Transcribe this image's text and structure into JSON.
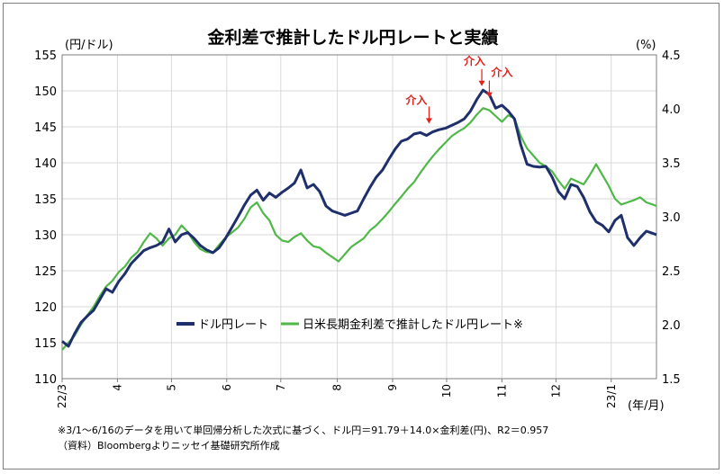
{
  "chart_data": {
    "type": "line",
    "title": "金利差で推計したドル円レートと実績",
    "y_left_unit": "(円/ドル)",
    "y_right_unit": "(%)",
    "x_unit": "(年/月)",
    "y_left_range": [
      110,
      155
    ],
    "y_right_range": [
      1.5,
      4.5
    ],
    "y_left_ticks": [
      "110",
      "115",
      "120",
      "125",
      "130",
      "135",
      "140",
      "145",
      "150",
      "155"
    ],
    "y_right_ticks": [
      "1.5",
      "2.0",
      "2.5",
      "3.0",
      "3.5",
      "4.0",
      "4.5"
    ],
    "x_ticks": [
      {
        "label": "22/3",
        "week": 0
      },
      {
        "label": "4",
        "week": 4.4
      },
      {
        "label": "5",
        "week": 8.7
      },
      {
        "label": "6",
        "week": 13.1
      },
      {
        "label": "7",
        "week": 17.4
      },
      {
        "label": "8",
        "week": 21.9
      },
      {
        "label": "9",
        "week": 26.3
      },
      {
        "label": "10",
        "week": 30.6
      },
      {
        "label": "11",
        "week": 35
      },
      {
        "label": "12",
        "week": 39.3
      },
      {
        "label": "23/1",
        "week": 43.7
      }
    ],
    "x_domain": [
      0,
      47.3
    ],
    "grid": true,
    "legend_position": "bottom-center",
    "series": [
      {
        "name": "ドル円レート",
        "axis": "left",
        "color": "#1f2f6b",
        "points": [
          [
            0,
            115.2
          ],
          [
            0.5,
            114.5
          ],
          [
            1,
            116.3
          ],
          [
            1.5,
            117.8
          ],
          [
            2,
            118.7
          ],
          [
            2.5,
            119.5
          ],
          [
            3,
            121.0
          ],
          [
            3.5,
            122.5
          ],
          [
            4,
            122.0
          ],
          [
            4.5,
            123.5
          ],
          [
            5,
            124.6
          ],
          [
            5.5,
            126.0
          ],
          [
            6,
            126.9
          ],
          [
            6.5,
            127.8
          ],
          [
            7,
            128.2
          ],
          [
            7.5,
            128.5
          ],
          [
            8,
            129.0
          ],
          [
            8.5,
            130.8
          ],
          [
            9,
            129.0
          ],
          [
            9.5,
            130.0
          ],
          [
            10,
            130.3
          ],
          [
            10.5,
            129.5
          ],
          [
            11,
            128.5
          ],
          [
            11.5,
            127.9
          ],
          [
            12,
            127.5
          ],
          [
            12.5,
            128.2
          ],
          [
            13,
            129.5
          ],
          [
            13.5,
            131.0
          ],
          [
            14,
            132.5
          ],
          [
            14.5,
            134.1
          ],
          [
            15,
            135.5
          ],
          [
            15.5,
            136.2
          ],
          [
            16,
            134.8
          ],
          [
            16.5,
            135.8
          ],
          [
            17,
            135.2
          ],
          [
            17.5,
            135.9
          ],
          [
            18,
            136.5
          ],
          [
            18.5,
            137.2
          ],
          [
            19,
            139.0
          ],
          [
            19.5,
            136.5
          ],
          [
            20,
            137.0
          ],
          [
            20.5,
            136.0
          ],
          [
            21,
            134.0
          ],
          [
            21.5,
            133.3
          ],
          [
            22,
            133.0
          ],
          [
            22.5,
            132.7
          ],
          [
            23,
            133.0
          ],
          [
            23.5,
            133.3
          ],
          [
            24,
            135.0
          ],
          [
            24.5,
            136.6
          ],
          [
            25,
            138.0
          ],
          [
            25.5,
            139.0
          ],
          [
            26,
            140.5
          ],
          [
            26.5,
            141.9
          ],
          [
            27,
            143.0
          ],
          [
            27.5,
            143.3
          ],
          [
            28,
            144.0
          ],
          [
            28.5,
            144.2
          ],
          [
            29,
            143.8
          ],
          [
            29.5,
            144.3
          ],
          [
            30,
            144.6
          ],
          [
            30.5,
            144.8
          ],
          [
            31,
            145.2
          ],
          [
            31.5,
            145.6
          ],
          [
            32,
            146.1
          ],
          [
            32.5,
            147.2
          ],
          [
            33,
            148.8
          ],
          [
            33.5,
            150.1
          ],
          [
            34,
            149.5
          ],
          [
            34.5,
            147.6
          ],
          [
            35,
            148.0
          ],
          [
            35.5,
            147.2
          ],
          [
            36,
            146.1
          ],
          [
            36.5,
            142.5
          ],
          [
            37,
            139.8
          ],
          [
            37.5,
            139.5
          ],
          [
            38,
            139.4
          ],
          [
            38.5,
            139.5
          ],
          [
            39,
            138.0
          ],
          [
            39.5,
            136.0
          ],
          [
            40,
            135.0
          ],
          [
            40.5,
            137.0
          ],
          [
            41,
            136.7
          ],
          [
            41.5,
            135.2
          ],
          [
            42,
            133.2
          ],
          [
            42.5,
            131.8
          ],
          [
            43,
            131.3
          ],
          [
            43.5,
            130.4
          ],
          [
            44,
            132.0
          ],
          [
            44.5,
            132.7
          ],
          [
            45,
            129.6
          ],
          [
            45.5,
            128.5
          ],
          [
            46,
            129.6
          ],
          [
            46.5,
            130.5
          ],
          [
            47,
            130.2
          ],
          [
            47.3,
            130.0
          ]
        ]
      },
      {
        "name": "日米長期金利差で推計したドル円レート※",
        "axis": "left",
        "color": "#4fb848",
        "points": [
          [
            0,
            114.0
          ],
          [
            0.5,
            115.0
          ],
          [
            1,
            116.0
          ],
          [
            1.5,
            117.5
          ],
          [
            2,
            118.8
          ],
          [
            2.5,
            120.0
          ],
          [
            3,
            121.5
          ],
          [
            3.5,
            122.8
          ],
          [
            4,
            123.6
          ],
          [
            4.5,
            124.8
          ],
          [
            5,
            125.6
          ],
          [
            5.5,
            126.8
          ],
          [
            6,
            127.6
          ],
          [
            6.5,
            129.0
          ],
          [
            7,
            130.2
          ],
          [
            7.5,
            129.5
          ],
          [
            8,
            128.5
          ],
          [
            8.5,
            129.5
          ],
          [
            9,
            130.0
          ],
          [
            9.5,
            131.3
          ],
          [
            10,
            130.4
          ],
          [
            10.5,
            129.0
          ],
          [
            11,
            128.0
          ],
          [
            11.5,
            127.6
          ],
          [
            12,
            127.5
          ],
          [
            12.5,
            128.6
          ],
          [
            13,
            129.6
          ],
          [
            13.5,
            130.3
          ],
          [
            14,
            131.0
          ],
          [
            14.5,
            132.2
          ],
          [
            15,
            133.8
          ],
          [
            15.5,
            134.5
          ],
          [
            16,
            133.0
          ],
          [
            16.5,
            132.0
          ],
          [
            17,
            130.0
          ],
          [
            17.5,
            129.2
          ],
          [
            18,
            129.0
          ],
          [
            18.5,
            129.7
          ],
          [
            19,
            130.2
          ],
          [
            19.5,
            129.2
          ],
          [
            20,
            128.4
          ],
          [
            20.5,
            128.2
          ],
          [
            21,
            127.5
          ],
          [
            21.5,
            126.9
          ],
          [
            22,
            126.3
          ],
          [
            22.5,
            127.3
          ],
          [
            23,
            128.3
          ],
          [
            23.5,
            128.9
          ],
          [
            24,
            129.5
          ],
          [
            24.5,
            130.6
          ],
          [
            25,
            131.3
          ],
          [
            25.5,
            132.2
          ],
          [
            26,
            133.2
          ],
          [
            26.5,
            134.3
          ],
          [
            27,
            135.3
          ],
          [
            27.5,
            136.4
          ],
          [
            28,
            137.3
          ],
          [
            28.5,
            138.6
          ],
          [
            29,
            139.8
          ],
          [
            29.5,
            140.9
          ],
          [
            30,
            141.9
          ],
          [
            30.5,
            142.8
          ],
          [
            31,
            143.7
          ],
          [
            31.5,
            144.3
          ],
          [
            32,
            144.8
          ],
          [
            32.5,
            145.6
          ],
          [
            33,
            146.7
          ],
          [
            33.5,
            147.6
          ],
          [
            34,
            147.3
          ],
          [
            34.5,
            146.5
          ],
          [
            35,
            145.7
          ],
          [
            35.5,
            146.6
          ],
          [
            36,
            146.2
          ],
          [
            36.5,
            143.7
          ],
          [
            37,
            142.0
          ],
          [
            37.5,
            141.0
          ],
          [
            38,
            140.0
          ],
          [
            38.5,
            139.5
          ],
          [
            39,
            138.8
          ],
          [
            39.5,
            137.5
          ],
          [
            40,
            136.4
          ],
          [
            40.5,
            137.8
          ],
          [
            41,
            137.4
          ],
          [
            41.5,
            137.0
          ],
          [
            42,
            138.3
          ],
          [
            42.5,
            139.8
          ],
          [
            43,
            138.3
          ],
          [
            43.5,
            136.8
          ],
          [
            44,
            135.0
          ],
          [
            44.5,
            134.2
          ],
          [
            45,
            134.5
          ],
          [
            45.5,
            134.8
          ],
          [
            46,
            135.2
          ],
          [
            46.5,
            134.5
          ],
          [
            47,
            134.2
          ],
          [
            47.3,
            134.0
          ]
        ]
      }
    ],
    "annotations": [
      {
        "label": "介入",
        "week": 29.2,
        "value": 145.2
      },
      {
        "label": "介入",
        "week": 33.4,
        "value": 150.4
      },
      {
        "label": "介入",
        "week": 34.0,
        "value": 148.8
      }
    ],
    "annotation_color": "#e0221c"
  },
  "notes": {
    "line1": "※3/1～6/16のデータを用いて単回帰分析した次式に基づく、ドル円＝91.79＋14.0×金利差(円)、R2＝0.957",
    "line2": "（資料）Bloombergよりニッセイ基礎研究所作成"
  }
}
